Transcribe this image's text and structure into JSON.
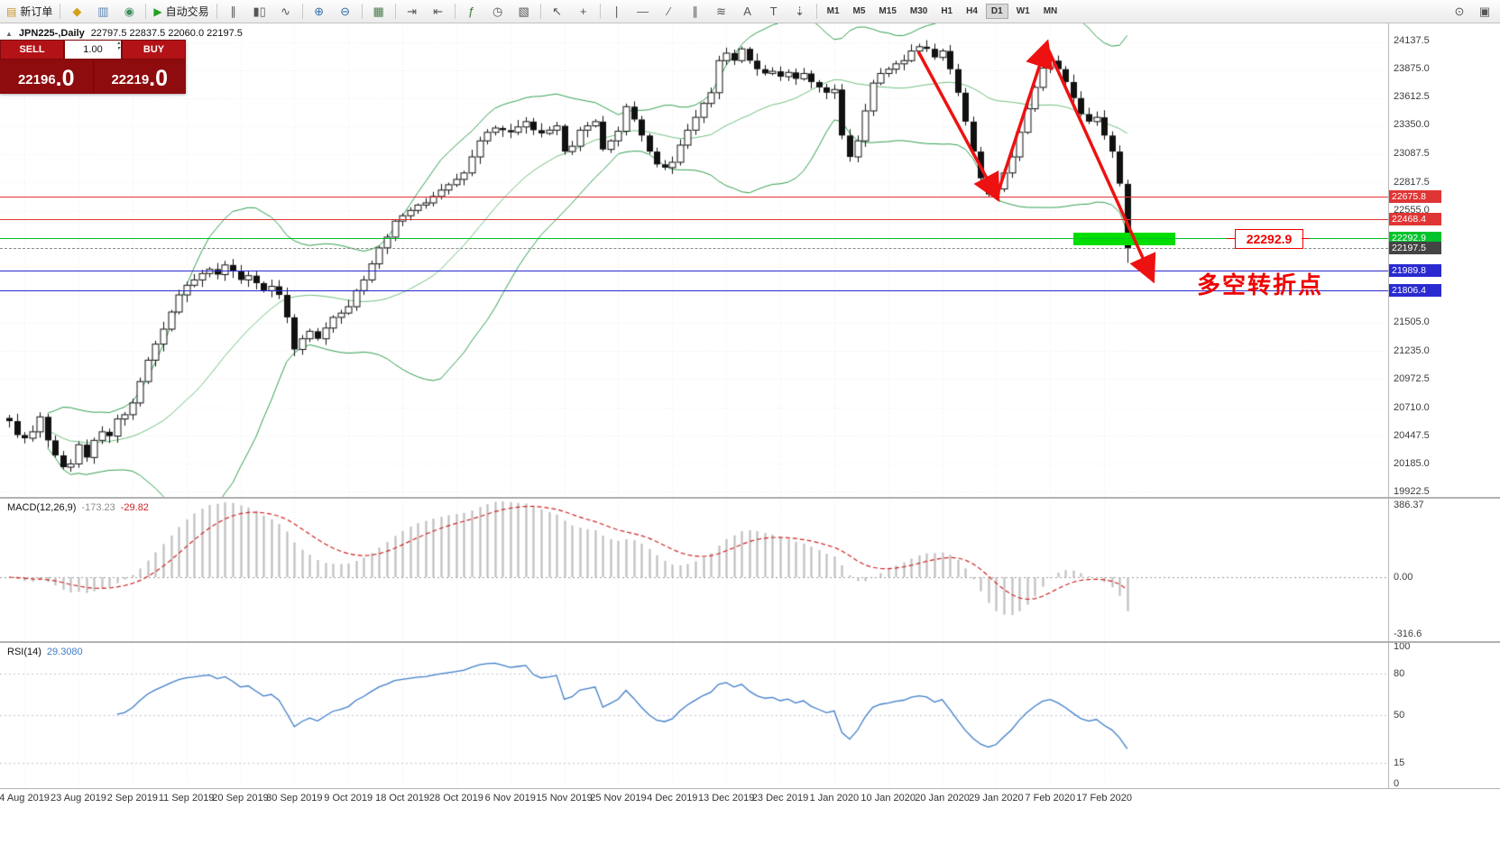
{
  "toolbar": {
    "groups": [
      {
        "items": [
          {
            "name": "new-order-button",
            "label": "新订单",
            "glyph": "▤",
            "glyph_color": "#c89228"
          }
        ]
      },
      {
        "items": [
          {
            "name": "chart-window-icon",
            "glyph": "◆",
            "glyph_color": "#d4a017"
          },
          {
            "name": "print-preview-icon",
            "glyph": "▥",
            "glyph_color": "#5b84b1"
          },
          {
            "name": "refresh-icon",
            "glyph": "◉",
            "glyph_color": "#3f8f5f"
          }
        ]
      },
      {
        "items": [
          {
            "name": "auto-trading-button",
            "label": "自动交易",
            "glyph": "▶",
            "glyph_color": "#21a121"
          }
        ]
      },
      {
        "items": [
          {
            "name": "bar-chart-icon",
            "glyph": "∥"
          },
          {
            "name": "candlestick-icon",
            "glyph": "▮▯"
          },
          {
            "name": "line-chart-icon",
            "glyph": "∿"
          }
        ]
      },
      {
        "items": [
          {
            "name": "zoom-in-icon",
            "glyph": "⊕",
            "glyph_color": "#3a6ea8"
          },
          {
            "name": "zoom-out-icon",
            "glyph": "⊖",
            "glyph_color": "#3a6ea8"
          }
        ]
      },
      {
        "items": [
          {
            "name": "tile-windows-icon",
            "glyph": "▦",
            "glyph_color": "#4a7a4a"
          }
        ]
      },
      {
        "items": [
          {
            "name": "auto-scroll-icon",
            "glyph": "⇥"
          },
          {
            "name": "chart-shift-icon",
            "glyph": "⇤"
          }
        ]
      },
      {
        "items": [
          {
            "name": "indicators-icon",
            "glyph": "ƒ",
            "glyph_color": "#2e7d32"
          },
          {
            "name": "periods-icon",
            "glyph": "◷"
          },
          {
            "name": "templates-icon",
            "glyph": "▧"
          }
        ]
      },
      {
        "items": [
          {
            "name": "cursor-icon",
            "glyph": "↖"
          },
          {
            "name": "crosshair-icon",
            "glyph": "+"
          }
        ]
      },
      {
        "items": [
          {
            "name": "vertical-line-icon",
            "glyph": "∣"
          },
          {
            "name": "horizontal-line-icon",
            "glyph": "—"
          },
          {
            "name": "trendline-icon",
            "glyph": "∕"
          },
          {
            "name": "channel-icon",
            "glyph": "∥"
          },
          {
            "name": "fibonacci-icon",
            "glyph": "≋"
          },
          {
            "name": "text-icon",
            "glyph": "A"
          },
          {
            "name": "label-icon",
            "glyph": "T"
          },
          {
            "name": "arrows-icon",
            "glyph": "⇣"
          }
        ]
      }
    ],
    "timeframes": {
      "items": [
        "M1",
        "M5",
        "M15",
        "M30",
        "H1",
        "H4",
        "D1",
        "W1",
        "MN"
      ],
      "active": "D1"
    },
    "right_items": [
      {
        "name": "search-icon",
        "glyph": "⊙"
      },
      {
        "name": "new-window-icon",
        "glyph": "▣"
      }
    ]
  },
  "symbol_bar": {
    "expander": "▲",
    "name": "JPN225-,Daily",
    "ohlc": "22797.5 22837.5 22060.0 22197.5"
  },
  "order_panel": {
    "sell_label": "SELL",
    "buy_label": "BUY",
    "volume": "1.00",
    "spin_up": "▴",
    "spin_down": "▾",
    "sell_price_int": "22196",
    "sell_price_dec": ".0",
    "buy_price_int": "22219",
    "buy_price_dec": ".0"
  },
  "macd_panel": {
    "label": "MACD(12,26,9)",
    "value_main": "-173.23",
    "value_signal": "-29.82",
    "scale": [
      {
        "text": "386.37",
        "value": 386.37
      },
      {
        "text": "0.00",
        "value": 0
      },
      {
        "text": "-316.6",
        "value": -316.6
      }
    ]
  },
  "rsi_panel": {
    "label": "RSI(14)",
    "value": "29.3080",
    "scale": [
      {
        "text": "100",
        "value": 100
      },
      {
        "text": "80",
        "value": 80
      },
      {
        "text": "50",
        "value": 50
      },
      {
        "text": "15",
        "value": 15
      },
      {
        "text": "0",
        "value": 0
      }
    ],
    "levels": [
      80,
      50,
      15
    ]
  },
  "annotations": {
    "price_callout": {
      "text": "22292.9",
      "color": "#ee0000"
    },
    "note": {
      "text": "多空转折点",
      "color": "#ee0000"
    },
    "highlight": {
      "color": "#00dd00",
      "price_top": 22345,
      "price_bottom": 22225
    },
    "trend_arrows": {
      "color": "#ee1111"
    }
  },
  "chart_data": {
    "type": "candlestick",
    "title": "JPN225-,Daily",
    "ohlc_display": {
      "open": 22797.5,
      "high": 22837.5,
      "low": 22060.0,
      "close": 22197.5
    },
    "last_candle": {
      "open": 22797.5,
      "high": 22837.5,
      "low": 22060.0,
      "close": 22197.5
    },
    "closes": [
      20580,
      20450,
      20420,
      20480,
      20620,
      20400,
      20260,
      20150,
      20180,
      20360,
      20240,
      20400,
      20480,
      20440,
      20600,
      20640,
      20750,
      20950,
      21150,
      21300,
      21440,
      21600,
      21760,
      21850,
      21900,
      21960,
      22000,
      21950,
      22040,
      21980,
      21900,
      21940,
      21870,
      21800,
      21840,
      21760,
      21550,
      21250,
      21350,
      21420,
      21350,
      21450,
      21550,
      21590,
      21650,
      21800,
      21900,
      22050,
      22200,
      22300,
      22450,
      22500,
      22550,
      22600,
      22620,
      22680,
      22740,
      22790,
      22840,
      22900,
      23050,
      23200,
      23280,
      23320,
      23300,
      23280,
      23330,
      23380,
      23300,
      23270,
      23300,
      23340,
      23100,
      23150,
      23300,
      23340,
      23380,
      23120,
      23200,
      23290,
      23520,
      23400,
      23250,
      23100,
      22980,
      22950,
      23000,
      23160,
      23300,
      23420,
      23550,
      23650,
      23950,
      24020,
      23950,
      24060,
      23950,
      23870,
      23830,
      23850,
      23800,
      23840,
      23780,
      23830,
      23750,
      23700,
      23650,
      23680,
      23250,
      23050,
      23200,
      23480,
      23740,
      23830,
      23870,
      23920,
      23950,
      24040,
      24080,
      24060,
      23980,
      24040,
      23870,
      23650,
      23380,
      23100,
      22850,
      22700,
      22750,
      22900,
      23050,
      23280,
      23500,
      23700,
      23880,
      23950,
      23870,
      23750,
      23600,
      23450,
      23380,
      23420,
      23250,
      23100,
      22800,
      22197.5
    ],
    "y_axis": {
      "min": 19922.5,
      "max": 24137.5,
      "step": 262.5,
      "labels": [
        {
          "text": "24137.5",
          "value": 24137.5
        },
        {
          "text": "23875.0",
          "value": 23875.0
        },
        {
          "text": "23612.5",
          "value": 23612.5
        },
        {
          "text": "23350.0",
          "value": 23350.0
        },
        {
          "text": "23087.5",
          "value": 23087.5
        },
        {
          "text": "22817.5",
          "value": 22817.5
        },
        {
          "text": "22555.0",
          "value": 22555.0
        },
        {
          "text": "21505.0",
          "value": 21505.0
        },
        {
          "text": "21235.0",
          "value": 21235.0
        },
        {
          "text": "20972.5",
          "value": 20972.5
        },
        {
          "text": "20710.0",
          "value": 20710.0
        },
        {
          "text": "20447.5",
          "value": 20447.5
        },
        {
          "text": "20185.0",
          "value": 20185.0
        },
        {
          "text": "19922.5",
          "value": 19922.5
        }
      ]
    },
    "x_labels": [
      "4 Aug 2019",
      "23 Aug 2019",
      "2 Sep 2019",
      "11 Sep 2019",
      "20 Sep 2019",
      "30 Sep 2019",
      "9 Oct 2019",
      "18 Oct 2019",
      "28 Oct 2019",
      "6 Nov 2019",
      "15 Nov 2019",
      "25 Nov 2019",
      "4 Dec 2019",
      "13 Dec 2019",
      "23 Dec 2019",
      "1 Jan 2020",
      "10 Jan 2020",
      "20 Jan 2020",
      "29 Jan 2020",
      "7 Feb 2020",
      "17 Feb 2020"
    ],
    "hlines": [
      {
        "label": "22675.8",
        "price": 22675.8,
        "color": "#e03535",
        "style": "solid"
      },
      {
        "label": "22468.4",
        "price": 22468.4,
        "color": "#e03535",
        "style": "solid"
      },
      {
        "label": "22292.9",
        "price": 22292.9,
        "color": "#00c22a",
        "style": "solid"
      },
      {
        "label": "22197.5",
        "price": 22197.5,
        "color": "#8a8a8a",
        "style": "dashed",
        "tag_color": "#444444"
      },
      {
        "label": "21989.8",
        "price": 21989.8,
        "color": "#2a2ad0",
        "style": "solid"
      },
      {
        "label": "21806.4",
        "price": 21806.4,
        "color": "#2a2ad0",
        "style": "solid"
      }
    ]
  }
}
